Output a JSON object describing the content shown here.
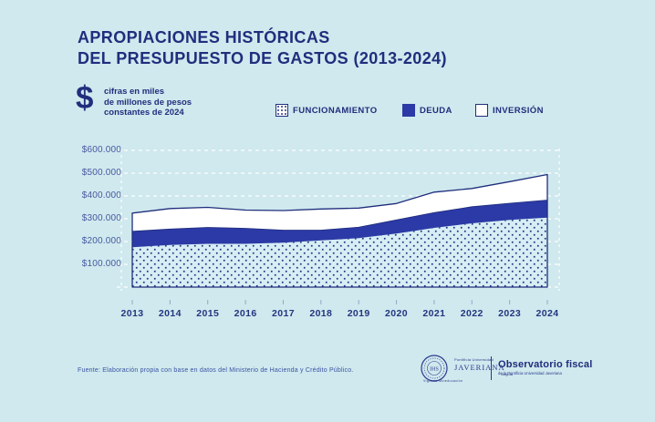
{
  "header": {
    "title_line1": "APROPIACIONES HISTÓRICAS",
    "title_line2": "DEL PRESUPUESTO DE GASTOS (2013-2024)"
  },
  "unit_note": {
    "symbol": "$",
    "line1": "cifras en miles",
    "line2": "de millones de pesos",
    "line3": "constantes de 2024"
  },
  "chart_data": {
    "type": "area",
    "stacked": true,
    "x": [
      2013,
      2014,
      2015,
      2016,
      2017,
      2018,
      2019,
      2020,
      2021,
      2022,
      2023,
      2024
    ],
    "series": [
      {
        "name": "FUNCIONAMIENTO",
        "style": "dotted-pattern",
        "values": [
          175000,
          185000,
          190000,
          190000,
          195000,
          205000,
          215000,
          235000,
          260000,
          280000,
          295000,
          305000
        ]
      },
      {
        "name": "DEUDA",
        "style": "solid-blue",
        "values": [
          70000,
          70000,
          72000,
          68000,
          55000,
          45000,
          48000,
          60000,
          67000,
          73000,
          73000,
          77000
        ]
      },
      {
        "name": "INVERSIÓN",
        "style": "white",
        "values": [
          80000,
          90000,
          88000,
          80000,
          86000,
          93000,
          84000,
          72000,
          90000,
          80000,
          95000,
          112000
        ]
      }
    ],
    "ylim": [
      0,
      600000
    ],
    "yticks": [
      100000,
      200000,
      300000,
      400000,
      500000,
      600000
    ],
    "ytick_labels": [
      "$100.000",
      "$200.000",
      "$300.000",
      "$400.000",
      "$500.000",
      "$600.000"
    ],
    "grid": "dashed-white-horizontal",
    "legend_position": "top-right"
  },
  "footer": {
    "source": "Fuente: Elaboración propia con base en datos del Ministerio de Hacienda y Crédito Público."
  },
  "branding": {
    "university_small": "Pontificia Universidad",
    "university_name": "JAVERIANA",
    "university_city": "Bogotá",
    "university_note": "Vigilada Mineducación",
    "seal_monogram": "IHS",
    "org_name": "Observatorio fiscal",
    "org_subtitle": "de la Pontificia Universidad Javeriana"
  },
  "colors": {
    "background": "#cfe9ee",
    "navy": "#202e7d",
    "royal_blue": "#2b3aa6",
    "dotted_bg": "#d6eef4",
    "axis_label": "#47589f",
    "grid": "#ffffff",
    "tick": "#8fabc4"
  }
}
